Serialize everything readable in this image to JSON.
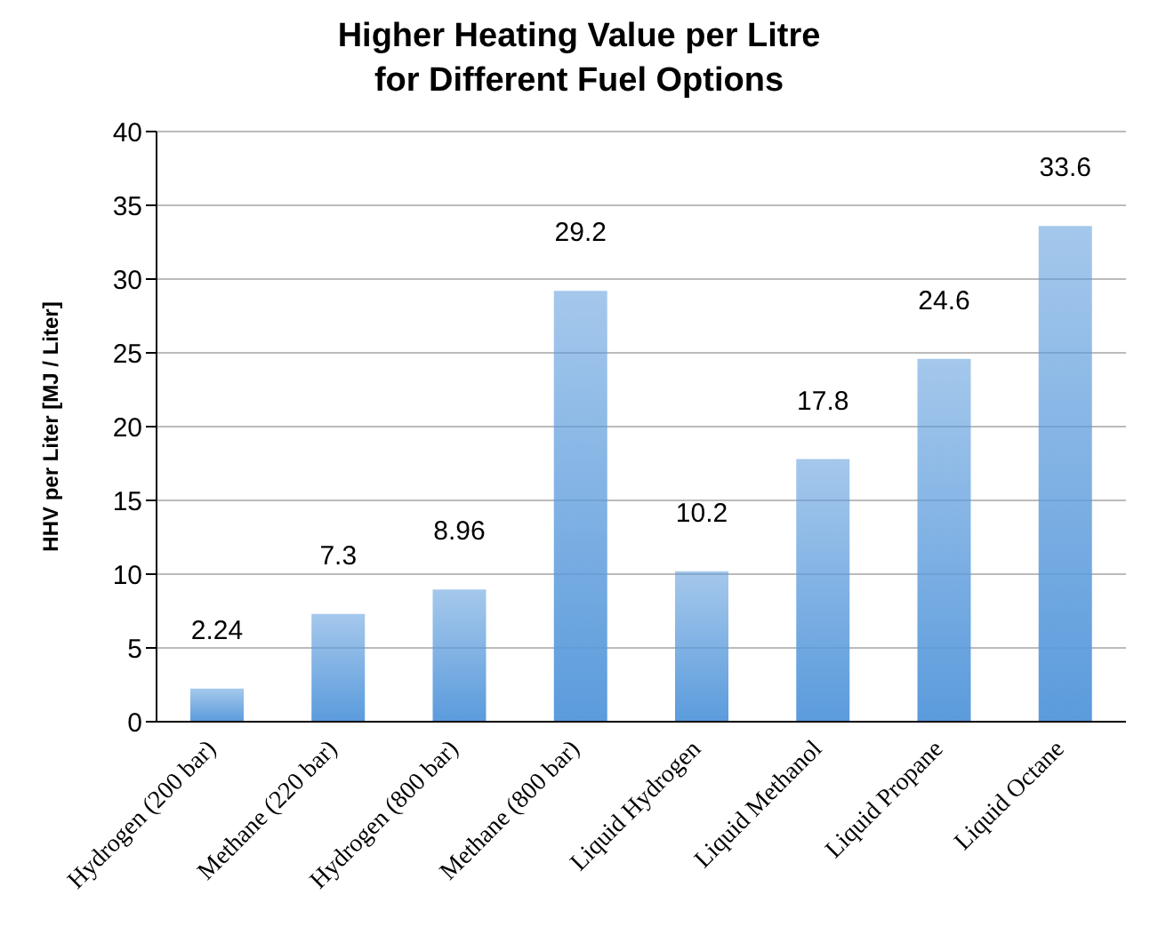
{
  "chart_data": {
    "type": "bar",
    "title": "Higher Heating Value per Litre\nfor Different Fuel Options",
    "ylabel": "HHV per Liter [MJ / Liter]",
    "categories": [
      "Hydrogen (200 bar)",
      "Methane (220 bar)",
      "Hydrogen (800 bar)",
      "Methane (800 bar)",
      "Liquid Hydrogen",
      "Liquid Methanol",
      "Liquid Propane",
      "Liquid Octane"
    ],
    "values": [
      2.24,
      7.3,
      8.96,
      29.2,
      10.2,
      17.8,
      24.6,
      33.6
    ],
    "color": "#5b9bdc",
    "ylim": [
      0,
      40
    ],
    "yticks": [
      0,
      5,
      10,
      15,
      20,
      25,
      30,
      35,
      40
    ],
    "grid": "y",
    "data_labels": true
  }
}
